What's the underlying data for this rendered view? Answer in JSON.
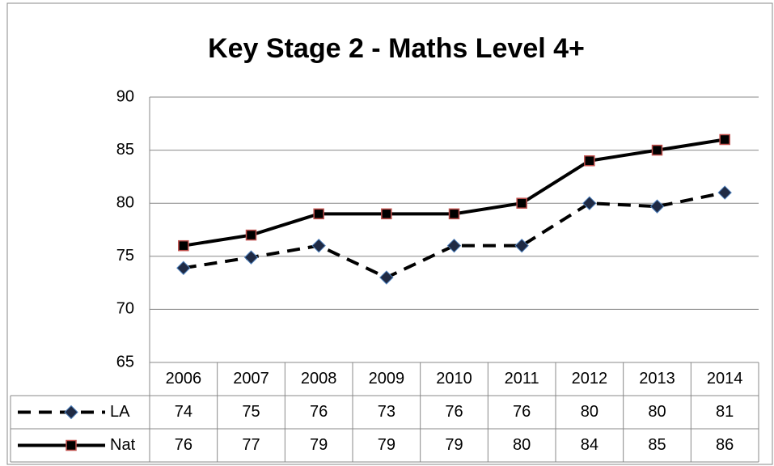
{
  "chart_data": {
    "type": "line",
    "title": "Key Stage 2 - Maths Level 4+",
    "categories": [
      "2006",
      "2007",
      "2008",
      "2009",
      "2010",
      "2011",
      "2012",
      "2013",
      "2014"
    ],
    "series": [
      {
        "name": "LA",
        "color": "#000000",
        "marker": "diamond",
        "marker_color": "#1f2a44",
        "marker_edge": "#4f81bd",
        "dash": true,
        "values": [
          73.9,
          74.9,
          76,
          73,
          76,
          76,
          80,
          79.7,
          81
        ],
        "value_labels": [
          "74",
          "75",
          "76",
          "73",
          "76",
          "76",
          "80",
          "80",
          "81"
        ]
      },
      {
        "name": "Nat",
        "color": "#000000",
        "marker": "square",
        "marker_color": "#000000",
        "marker_edge": "#c0504d",
        "dash": false,
        "values": [
          76,
          77,
          79,
          79,
          79,
          80,
          84,
          85,
          86
        ]
      }
    ],
    "ylim": [
      65,
      90
    ],
    "yticks": [
      65,
      70,
      75,
      80,
      85,
      90
    ],
    "grid": true,
    "data_table": true
  }
}
